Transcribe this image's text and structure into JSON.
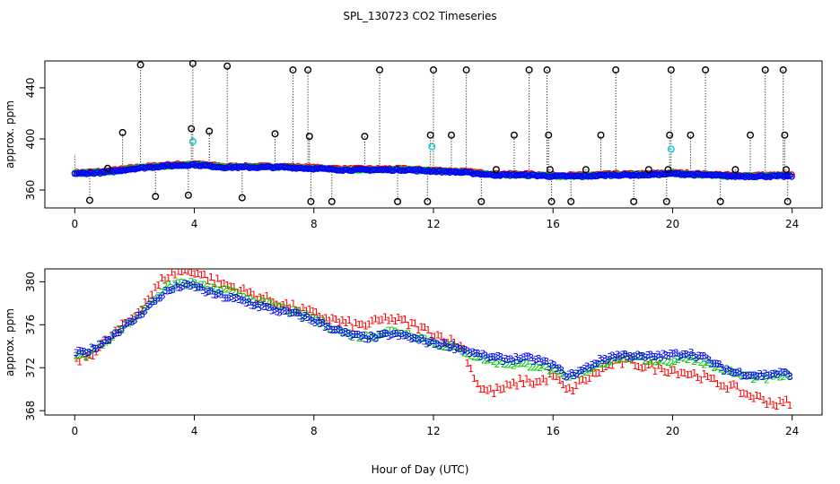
{
  "title": "SPL_130723  CO2 Timeseries",
  "xlabel": "Hour of Day (UTC)",
  "colors": {
    "series1": "#ff0000",
    "series2": "#00cc00",
    "series3": "#0000ff",
    "outlier": "#000000",
    "flagged": "#00cccc"
  },
  "chart_data": [
    {
      "type": "scatter",
      "name": "top-panel",
      "ylabel": "approx. ppm",
      "xlim": [
        -1,
        25
      ],
      "ylim": [
        346,
        461
      ],
      "xticks": [
        "0",
        "4",
        "8",
        "12",
        "16",
        "20",
        "24"
      ],
      "yticks": [
        "360",
        "400",
        "440"
      ],
      "baseline_knots": {
        "x": [
          0,
          1,
          2,
          3,
          4,
          5,
          6,
          7,
          8,
          9,
          10,
          11,
          12,
          13,
          14,
          15,
          16,
          17,
          18,
          19,
          20,
          21,
          22,
          23,
          24
        ],
        "y": [
          373,
          374,
          377,
          379,
          380,
          378,
          378,
          378,
          377,
          376,
          376,
          376,
          375,
          374,
          372,
          372,
          371,
          371,
          372,
          372,
          373,
          372,
          371,
          371,
          371
        ]
      },
      "outlier_points": [
        {
          "x": 0.5,
          "y": 352
        },
        {
          "x": 1.1,
          "y": 377
        },
        {
          "x": 1.6,
          "y": 405
        },
        {
          "x": 2.2,
          "y": 458
        },
        {
          "x": 2.7,
          "y": 355
        },
        {
          "x": 3.8,
          "y": 356
        },
        {
          "x": 3.9,
          "y": 408
        },
        {
          "x": 3.95,
          "y": 459
        },
        {
          "x": 4.5,
          "y": 406
        },
        {
          "x": 5.1,
          "y": 457
        },
        {
          "x": 5.6,
          "y": 354
        },
        {
          "x": 6.7,
          "y": 404
        },
        {
          "x": 7.3,
          "y": 454
        },
        {
          "x": 7.8,
          "y": 454
        },
        {
          "x": 7.85,
          "y": 402
        },
        {
          "x": 7.9,
          "y": 351
        },
        {
          "x": 8.6,
          "y": 351
        },
        {
          "x": 9.7,
          "y": 402
        },
        {
          "x": 10.2,
          "y": 454
        },
        {
          "x": 10.8,
          "y": 351
        },
        {
          "x": 11.8,
          "y": 351
        },
        {
          "x": 11.9,
          "y": 403
        },
        {
          "x": 12.0,
          "y": 454
        },
        {
          "x": 12.6,
          "y": 403
        },
        {
          "x": 13.1,
          "y": 454
        },
        {
          "x": 13.6,
          "y": 351
        },
        {
          "x": 14.1,
          "y": 376
        },
        {
          "x": 14.7,
          "y": 403
        },
        {
          "x": 15.2,
          "y": 454
        },
        {
          "x": 15.8,
          "y": 454
        },
        {
          "x": 15.85,
          "y": 403
        },
        {
          "x": 15.9,
          "y": 376
        },
        {
          "x": 15.95,
          "y": 351
        },
        {
          "x": 16.6,
          "y": 351
        },
        {
          "x": 17.1,
          "y": 376
        },
        {
          "x": 17.6,
          "y": 403
        },
        {
          "x": 18.1,
          "y": 454
        },
        {
          "x": 18.7,
          "y": 351
        },
        {
          "x": 19.2,
          "y": 376
        },
        {
          "x": 19.8,
          "y": 351
        },
        {
          "x": 19.85,
          "y": 376
        },
        {
          "x": 19.9,
          "y": 403
        },
        {
          "x": 19.95,
          "y": 454
        },
        {
          "x": 20.6,
          "y": 403
        },
        {
          "x": 21.1,
          "y": 454
        },
        {
          "x": 21.6,
          "y": 351
        },
        {
          "x": 22.1,
          "y": 376
        },
        {
          "x": 22.6,
          "y": 403
        },
        {
          "x": 23.1,
          "y": 454
        },
        {
          "x": 23.7,
          "y": 454
        },
        {
          "x": 23.75,
          "y": 403
        },
        {
          "x": 23.8,
          "y": 376
        },
        {
          "x": 23.85,
          "y": 351
        }
      ],
      "flagged_points": [
        {
          "x": 3.95,
          "y": 398
        },
        {
          "x": 11.95,
          "y": 394
        },
        {
          "x": 19.95,
          "y": 392
        }
      ]
    },
    {
      "type": "scatter",
      "name": "bottom-panel",
      "ylabel": "approx. ppm",
      "xlim": [
        -1,
        25
      ],
      "ylim": [
        367.6,
        381.2
      ],
      "xticks": [
        "0",
        "4",
        "8",
        "12",
        "16",
        "20",
        "24"
      ],
      "yticks": [
        "368",
        "372",
        "376",
        "380"
      ],
      "series": [
        {
          "name": "1",
          "color": "#ff0000",
          "x": [
            0,
            0.5,
            1,
            1.5,
            2,
            2.5,
            3,
            3.5,
            4,
            4.5,
            5,
            5.5,
            6,
            6.5,
            7,
            7.5,
            8,
            8.5,
            9,
            9.5,
            10,
            10.5,
            11,
            11.5,
            12,
            12.5,
            13,
            13.3,
            13.6,
            14,
            14.5,
            15,
            15.5,
            16,
            16.5,
            17,
            17.5,
            18,
            18.5,
            19,
            19.5,
            20,
            20.5,
            21,
            21.5,
            22,
            22.5,
            23,
            23.5,
            24
          ],
          "y": [
            372.6,
            373.2,
            374.3,
            375.6,
            376.8,
            378.6,
            380.4,
            381.0,
            381.0,
            380.3,
            379.8,
            379.3,
            378.8,
            378.3,
            377.9,
            377.5,
            377.0,
            376.6,
            376.2,
            375.9,
            376.2,
            376.6,
            376.3,
            375.8,
            375.2,
            374.6,
            373.9,
            371.5,
            370.0,
            369.8,
            370.2,
            370.8,
            370.6,
            371.3,
            369.8,
            370.8,
            371.6,
            372.4,
            372.6,
            372.2,
            372.0,
            371.8,
            371.5,
            371.2,
            370.6,
            370.2,
            369.5,
            369.1,
            368.6,
            368.9
          ]
        },
        {
          "name": "2",
          "color": "#00cc00",
          "x": [
            0,
            0.5,
            1,
            1.5,
            2,
            2.5,
            3,
            3.5,
            4,
            4.5,
            5,
            5.5,
            6,
            6.5,
            7,
            7.5,
            8,
            8.5,
            9,
            9.5,
            10,
            10.5,
            11,
            11.5,
            12,
            12.5,
            13,
            13.5,
            14,
            14.5,
            15,
            15.5,
            16,
            16.5,
            17,
            17.5,
            18,
            18.5,
            19,
            19.5,
            20,
            20.5,
            21,
            21.5,
            22,
            22.5,
            23,
            23.5,
            24
          ],
          "y": [
            373.0,
            373.4,
            374.4,
            375.5,
            376.6,
            378.0,
            379.4,
            379.9,
            379.8,
            379.4,
            379.2,
            378.8,
            378.3,
            377.9,
            377.5,
            377.0,
            376.6,
            375.9,
            375.3,
            374.9,
            375.0,
            375.4,
            375.3,
            374.9,
            374.4,
            374.0,
            373.6,
            373.0,
            372.6,
            372.4,
            372.3,
            372.2,
            371.8,
            371.0,
            371.6,
            372.3,
            372.8,
            373.0,
            372.8,
            372.7,
            372.6,
            373.0,
            372.6,
            372.0,
            371.6,
            371.2,
            371.0,
            371.2,
            371.4
          ]
        },
        {
          "name": "3",
          "color": "#0000ff",
          "x": [
            0,
            0.5,
            1,
            1.5,
            2,
            2.5,
            3,
            3.5,
            4,
            4.5,
            5,
            5.5,
            6,
            6.5,
            7,
            7.5,
            8,
            8.5,
            9,
            9.5,
            10,
            10.5,
            11,
            11.5,
            12,
            12.5,
            13,
            13.5,
            14,
            14.5,
            15,
            15.5,
            16,
            16.5,
            17,
            17.5,
            18,
            18.5,
            19,
            19.5,
            20,
            20.5,
            21,
            21.5,
            22,
            22.5,
            23,
            23.5,
            24
          ],
          "y": [
            373.3,
            373.6,
            374.5,
            375.5,
            376.5,
            377.8,
            379.0,
            379.6,
            379.6,
            379.0,
            378.6,
            378.3,
            377.9,
            377.5,
            377.2,
            376.9,
            376.4,
            375.8,
            375.2,
            374.9,
            374.8,
            375.1,
            375.0,
            374.6,
            374.3,
            374.1,
            373.7,
            373.2,
            372.9,
            372.8,
            372.9,
            372.7,
            372.2,
            371.2,
            371.8,
            372.6,
            373.1,
            373.2,
            373.0,
            373.1,
            373.2,
            373.4,
            373.0,
            372.2,
            371.6,
            371.4,
            371.3,
            371.5,
            371.4
          ]
        }
      ]
    }
  ]
}
